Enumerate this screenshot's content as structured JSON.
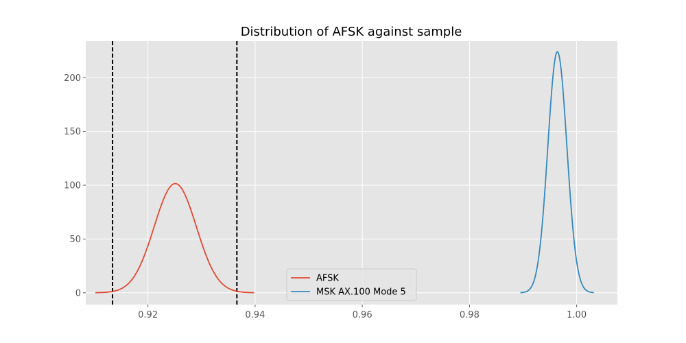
{
  "chart_data": {
    "type": "line",
    "title": "Distribution of AFSK against sample",
    "xlabel": "",
    "ylabel": "",
    "xlim": [
      0.9084,
      1.0076
    ],
    "ylim": [
      -11,
      234
    ],
    "xticks": [
      0.92,
      0.94,
      0.96,
      0.98,
      1.0
    ],
    "xtick_labels": [
      "0.92",
      "0.94",
      "0.96",
      "0.98",
      "1.00"
    ],
    "yticks": [
      0,
      50,
      100,
      150,
      200
    ],
    "ytick_labels": [
      "0",
      "50",
      "100",
      "150",
      "200"
    ],
    "grid": true,
    "legend_position": "lower center",
    "series": [
      {
        "name": "AFSK",
        "color": "#E24A33",
        "distribution": "normal",
        "mean": 0.9251,
        "std": 0.00393,
        "x_range": [
          0.9102,
          0.9398
        ]
      },
      {
        "name": "MSK AX.100 Mode 5",
        "color": "#348ABD",
        "distribution": "normal",
        "mean": 0.9964,
        "std": 0.00178,
        "x_range": [
          0.9895,
          1.0032
        ]
      }
    ],
    "vlines": [
      {
        "x": 0.9134,
        "style": "dashed",
        "color": "#000000"
      },
      {
        "x": 0.9366,
        "style": "dashed",
        "color": "#000000"
      }
    ]
  },
  "colors": {
    "plot_background": "#E5E5E5",
    "grid": "#FFFFFF",
    "legend_background": "#E5E5E5"
  }
}
